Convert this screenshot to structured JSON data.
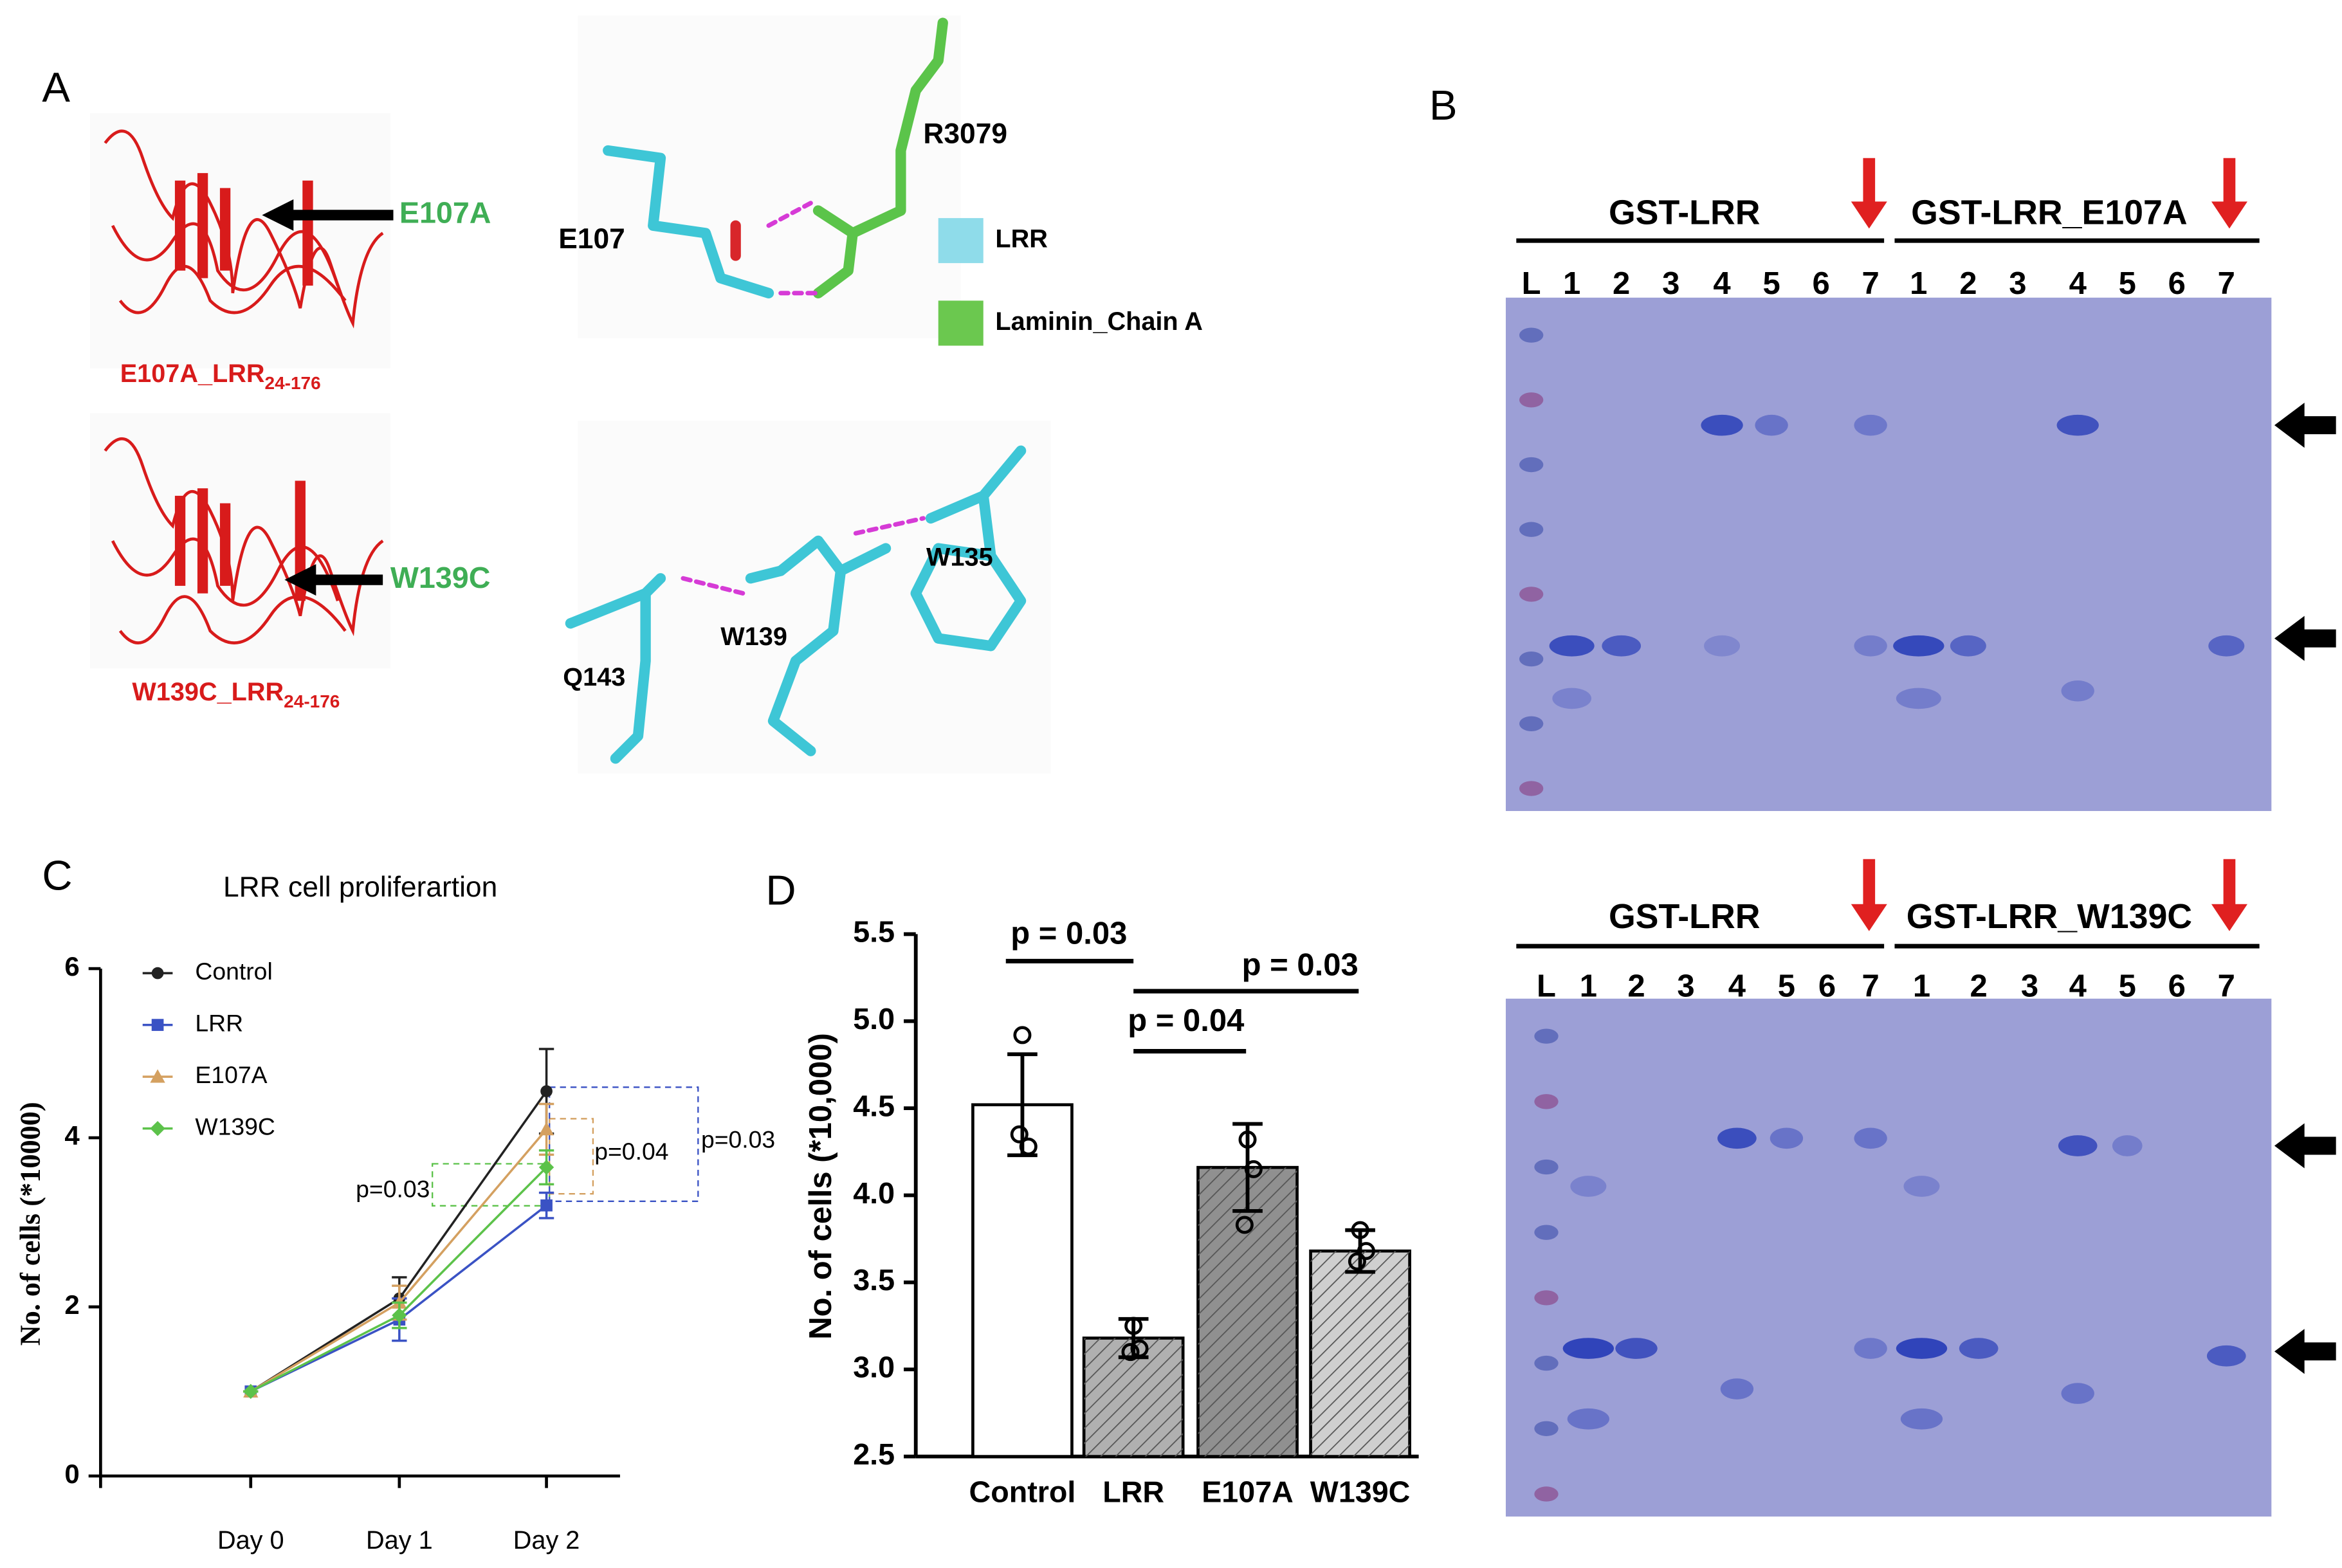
{
  "panels": {
    "a": "A",
    "b": "B",
    "c": "C",
    "d": "D"
  },
  "structures": {
    "mutant_1": {
      "arrow_label": "E107A",
      "name": "E107A_LRR",
      "subscript": "24-176"
    },
    "mutant_2": {
      "arrow_label": "W139C",
      "name": "W139C_LRR",
      "subscript": "24-176"
    },
    "interaction_1": {
      "residue_1": "E107",
      "residue_2": "R3079",
      "legend": [
        "LRR",
        "Laminin_Chain A"
      ]
    },
    "interaction_2": {
      "residues": [
        "Q143",
        "W139",
        "W135"
      ]
    }
  },
  "gels": [
    {
      "groups": [
        "GST-LRR",
        "GST-LRR_E107A"
      ],
      "lanes": [
        "L",
        "1",
        "2",
        "3",
        "4",
        "5",
        "6",
        "7",
        "1",
        "2",
        "3",
        "4",
        "5",
        "6",
        "7"
      ]
    },
    {
      "groups": [
        "GST-LRR",
        "GST-LRR_W139C"
      ],
      "lanes": [
        "L",
        "1",
        "2",
        "3",
        "4",
        "5",
        "6",
        "7",
        "1",
        "2",
        "3",
        "4",
        "5",
        "6",
        "7"
      ]
    }
  ],
  "chart_data": [
    {
      "type": "line",
      "title": "LRR cell proliferartion",
      "y_label": "No. of cells (*10000)",
      "categories": [
        "Day 0",
        "Day 1",
        "Day 2"
      ],
      "series": [
        {
          "name": "Control",
          "color": "#222222",
          "marker": "circle",
          "values": [
            1,
            2.1,
            4.55
          ],
          "errors": [
            0,
            0.25,
            0.5
          ]
        },
        {
          "name": "LRR",
          "color": "#3a52c4",
          "marker": "square",
          "values": [
            1,
            1.85,
            3.2
          ],
          "errors": [
            0,
            0.25,
            0.15
          ]
        },
        {
          "name": "E107A",
          "color": "#d4a060",
          "marker": "triangle",
          "values": [
            1,
            2.05,
            4.1
          ],
          "errors": [
            0,
            0.2,
            0.3
          ]
        },
        {
          "name": "W139C",
          "color": "#5cc24a",
          "marker": "diamond",
          "values": [
            1,
            1.9,
            3.65
          ],
          "errors": [
            0,
            0.15,
            0.2
          ]
        }
      ],
      "ylim": [
        0,
        6
      ],
      "yticks": [
        0,
        2,
        4,
        6
      ],
      "annotations": [
        "p=0.03",
        "p=0.04",
        "p=0.03"
      ]
    },
    {
      "type": "bar",
      "y_label": "No. of cells (*10,000)",
      "categories": [
        "Control",
        "LRR",
        "E107A",
        "W139C"
      ],
      "values": [
        4.52,
        3.18,
        4.16,
        3.68
      ],
      "errors": [
        0.29,
        0.11,
        0.25,
        0.12
      ],
      "colors": [
        "#ffffff",
        "#b0b0b0",
        "#909090",
        "#cfcfcf"
      ],
      "hatch": [
        false,
        true,
        true,
        true
      ],
      "points": [
        [
          4.92,
          4.28,
          4.35
        ],
        [
          3.25,
          3.12,
          3.1
        ],
        [
          4.32,
          4.15,
          3.83
        ],
        [
          3.8,
          3.68,
          3.62
        ]
      ],
      "ylim": [
        2.5,
        5.5
      ],
      "yticks": [
        2.5,
        {
          "value": 3,
          "label": "3.0"
        },
        3.5,
        {
          "value": 4,
          "label": "4.0"
        },
        4.5,
        {
          "value": 5,
          "label": "5.0"
        },
        5.5
      ],
      "annotations": [
        "p = 0.03",
        "p = 0.04",
        "p = 0.03"
      ]
    }
  ]
}
